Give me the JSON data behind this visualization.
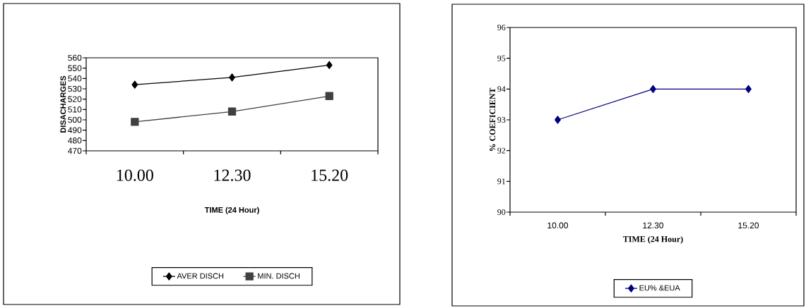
{
  "chart_data": [
    {
      "type": "line",
      "xlabel": "TIME (24 Hour)",
      "ylabel": "DISACHARGES",
      "categories": [
        "10.00",
        "12.30",
        "15.20"
      ],
      "series": [
        {
          "name": "AVER DISCH",
          "color": "#000000",
          "marker": "diamond",
          "values": [
            534,
            541,
            553
          ]
        },
        {
          "name": "MIN. DISCH",
          "color": "#404040",
          "marker": "square",
          "values": [
            498,
            508,
            523
          ]
        }
      ],
      "ylim": [
        470,
        560
      ],
      "yticks": [
        470,
        480,
        490,
        500,
        510,
        520,
        530,
        540,
        550,
        560
      ],
      "legend": "bottom"
    },
    {
      "type": "line",
      "xlabel": "TIME (24 Hour)",
      "ylabel": "% COEFICIENT",
      "categories": [
        "10.00",
        "12.30",
        "15.20"
      ],
      "series": [
        {
          "name": "EU% &EUA",
          "color": "#000080",
          "values": [
            93,
            94,
            94
          ]
        }
      ],
      "marker": "diamond",
      "ylim": [
        90,
        96
      ],
      "yticks": [
        90,
        91,
        92,
        93,
        94,
        95,
        96
      ],
      "legend": "bottom"
    }
  ]
}
